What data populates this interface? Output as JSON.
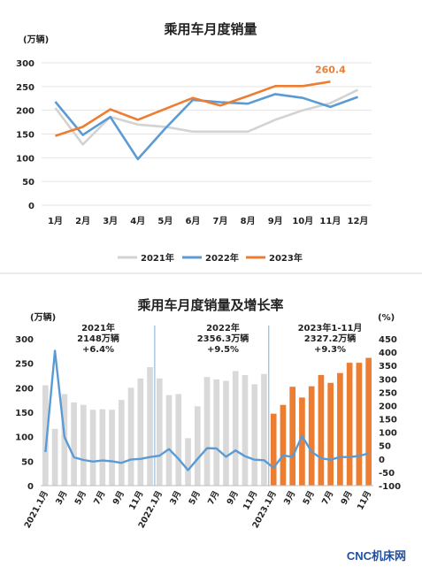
{
  "chart_data": [
    {
      "type": "line",
      "title": "乘用车月度销量",
      "unit_label": "(万辆)",
      "categories": [
        "1月",
        "2月",
        "3月",
        "4月",
        "5月",
        "6月",
        "7月",
        "8月",
        "9月",
        "10月",
        "11月",
        "12月"
      ],
      "ylim": [
        0,
        300
      ],
      "yticks": [
        "0",
        "50",
        "100",
        "150",
        "200",
        "250",
        "300"
      ],
      "series": [
        {
          "name": "2021年",
          "color": "#d3d3d3",
          "values": [
            205,
            128,
            186,
            170,
            165,
            155,
            155,
            155,
            180,
            200,
            215,
            243
          ]
        },
        {
          "name": "2022年",
          "color": "#5b9bd5",
          "values": [
            218,
            148,
            186,
            97,
            162,
            222,
            217,
            214,
            234,
            226,
            207,
            228
          ]
        },
        {
          "name": "2023年",
          "color": "#ed7d31",
          "values": [
            146,
            165,
            202,
            180,
            203,
            226,
            210,
            230,
            251,
            251,
            260.4,
            null
          ]
        }
      ],
      "annotation": "260.4",
      "grid": true,
      "legend": "bottom"
    },
    {
      "type": "bar+line",
      "title": "乘用车月度销量及增长率",
      "left_unit": "(万辆)",
      "right_unit": "(%)",
      "ylim_left": [
        0,
        300
      ],
      "yticks_left": [
        "0",
        "50",
        "100",
        "150",
        "200",
        "250",
        "300"
      ],
      "ylim_right": [
        -100,
        450
      ],
      "yticks_right": [
        "-100",
        "-50",
        "0",
        "50",
        "100",
        "150",
        "200",
        "250",
        "300",
        "350",
        "400",
        "450"
      ],
      "xtick_labels": [
        "2021.1月",
        "3月",
        "5月",
        "7月",
        "9月",
        "11月",
        "2022.1月",
        "3月",
        "5月",
        "7月",
        "9月",
        "11月",
        "2023.1月",
        "3月",
        "5月",
        "7月",
        "9月",
        "11月"
      ],
      "bars_2021": [
        205,
        116,
        187,
        170,
        165,
        155,
        156,
        155,
        175,
        200,
        219,
        242
      ],
      "bars_2022": [
        219,
        185,
        187,
        97,
        162,
        222,
        217,
        214,
        234,
        226,
        207,
        228
      ],
      "bars_2023": [
        147,
        165,
        202,
        180,
        203,
        226,
        210,
        230,
        251,
        251,
        261
      ],
      "growth_rate": [
        26,
        405,
        82,
        6,
        -4,
        -10,
        -6,
        -9,
        -15,
        -2,
        0,
        7,
        12,
        37,
        0,
        -42,
        0,
        40,
        39,
        8,
        32,
        10,
        -3,
        -5,
        -33,
        13,
        8,
        86,
        27,
        2,
        -3,
        7,
        7,
        11,
        21
      ],
      "bar_colors": {
        "y2021": "#d9d9d9",
        "y2022": "#d9d9d9",
        "y2023": "#ed7d31"
      },
      "line_color": "#5b9bd5",
      "annotations": [
        {
          "lines": [
            "2021年",
            "2148万辆",
            "+6.4%"
          ]
        },
        {
          "lines": [
            "2022年",
            "2356.3万辆",
            "+9.5%"
          ]
        },
        {
          "lines": [
            "2023年1-11月",
            "2327.2万辆",
            "+9.3%"
          ]
        }
      ]
    }
  ],
  "footer": "CNC机床网"
}
